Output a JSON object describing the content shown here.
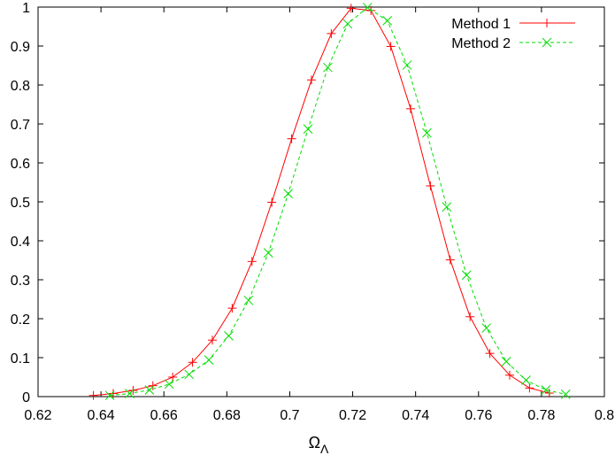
{
  "chart_data": {
    "type": "line",
    "title": "",
    "xlabel": "Ω",
    "xlabel_subscript": "Λ",
    "ylabel": "",
    "xlim": [
      0.62,
      0.8
    ],
    "ylim": [
      0,
      1
    ],
    "xticks": [
      "0.62",
      "0.64",
      "0.66",
      "0.68",
      "0.7",
      "0.72",
      "0.74",
      "0.76",
      "0.78",
      "0.8"
    ],
    "yticks": [
      "0",
      "0.1",
      "0.2",
      "0.3",
      "0.4",
      "0.5",
      "0.6",
      "0.7",
      "0.8",
      "0.9",
      "1"
    ],
    "grid": false,
    "legend_position": "top-right",
    "series": [
      {
        "name": "Method 1",
        "color": "#ff0000",
        "line_style": "solid",
        "marker": "plus",
        "x": [
          0.6376,
          0.6439,
          0.6502,
          0.6565,
          0.6628,
          0.6691,
          0.6754,
          0.6817,
          0.688,
          0.6943,
          0.7006,
          0.7069,
          0.7132,
          0.7195,
          0.7258,
          0.7321,
          0.7384,
          0.7447,
          0.751,
          0.7573,
          0.7636,
          0.7699,
          0.7762,
          0.7825
        ],
        "y": [
          0.003,
          0.008,
          0.016,
          0.028,
          0.05,
          0.088,
          0.145,
          0.227,
          0.347,
          0.499,
          0.662,
          0.813,
          0.932,
          0.997,
          0.991,
          0.899,
          0.739,
          0.541,
          0.351,
          0.205,
          0.111,
          0.055,
          0.022,
          0.009
        ]
      },
      {
        "name": "Method 2",
        "color": "#00dd00",
        "line_style": "dashed",
        "marker": "cross",
        "x": [
          0.6428,
          0.6491,
          0.6554,
          0.6617,
          0.668,
          0.6743,
          0.6806,
          0.6869,
          0.6932,
          0.6995,
          0.7058,
          0.7121,
          0.7184,
          0.7247,
          0.731,
          0.7373,
          0.7436,
          0.7499,
          0.7562,
          0.7625,
          0.7688,
          0.7751,
          0.7814,
          0.7877
        ],
        "y": [
          0.003,
          0.008,
          0.017,
          0.032,
          0.057,
          0.094,
          0.156,
          0.247,
          0.369,
          0.521,
          0.687,
          0.845,
          0.957,
          0.999,
          0.965,
          0.851,
          0.677,
          0.487,
          0.312,
          0.176,
          0.09,
          0.042,
          0.017,
          0.006
        ]
      }
    ]
  }
}
